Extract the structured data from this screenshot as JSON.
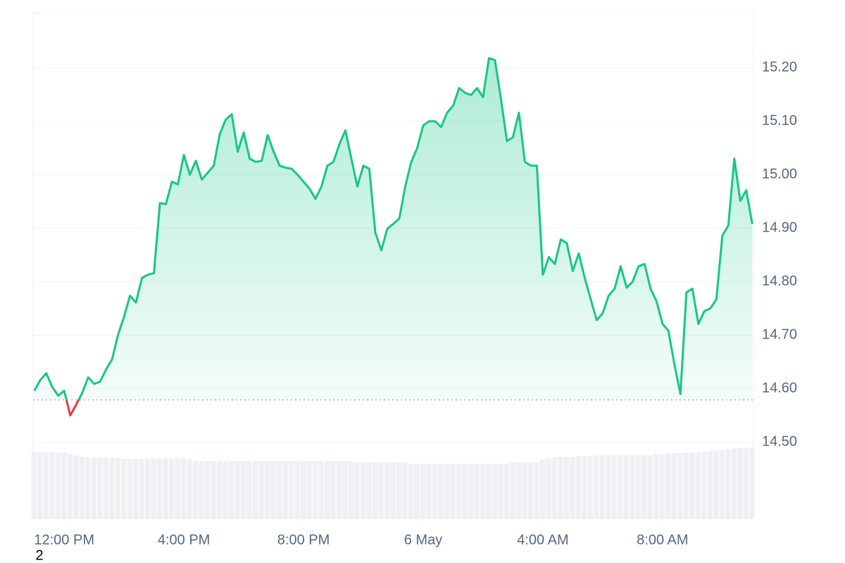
{
  "chart_data": {
    "type": "line",
    "x": [
      11,
      11.2,
      11.4,
      11.6,
      11.8,
      12,
      12.2,
      12.4,
      12.6,
      12.8,
      13,
      13.2,
      13.4,
      13.6,
      13.8,
      14,
      14.2,
      14.4,
      14.6,
      14.8,
      15,
      15.2,
      15.4,
      15.6,
      15.8,
      16,
      16.2,
      16.4,
      16.6,
      16.8,
      17,
      17.2,
      17.4,
      17.6,
      17.8,
      18,
      18.2,
      18.4,
      18.6,
      18.8,
      19,
      19.2,
      19.4,
      19.6,
      19.8,
      20,
      20.2,
      20.4,
      20.6,
      20.8,
      21,
      21.2,
      21.4,
      21.6,
      21.8,
      22,
      22.2,
      22.4,
      22.6,
      22.8,
      23,
      23.2,
      23.4,
      23.6,
      23.8,
      24,
      24.2,
      24.4,
      24.6,
      24.8,
      25,
      25.2,
      25.4,
      25.6,
      25.8,
      26,
      26.2,
      26.4,
      26.6,
      26.8,
      27,
      27.2,
      27.4,
      27.6,
      27.8,
      28,
      28.2,
      28.4,
      28.6,
      28.8,
      29,
      29.2,
      29.4,
      29.6,
      29.8,
      30,
      30.2,
      30.4,
      30.6,
      30.8,
      31,
      31.2,
      31.4,
      31.6,
      31.8,
      32,
      32.2,
      32.4,
      32.6,
      32.8,
      33,
      33.2,
      33.4,
      33.6,
      33.8,
      34,
      34.2,
      34.4,
      34.6,
      34.8,
      35
    ],
    "series": [
      {
        "color": "#16c784",
        "below_color": "#ea3943",
        "values": [
          14.596,
          14.616,
          14.629,
          14.603,
          14.587,
          14.596,
          14.55,
          14.57,
          14.592,
          14.621,
          14.609,
          14.613,
          14.636,
          14.655,
          14.701,
          14.734,
          14.774,
          14.761,
          14.807,
          14.813,
          14.816,
          14.947,
          14.945,
          14.987,
          14.982,
          15.037,
          15.0,
          15.026,
          14.991,
          15.004,
          15.017,
          15.076,
          15.103,
          15.113,
          15.043,
          15.079,
          15.03,
          15.024,
          15.026,
          15.074,
          15.043,
          15.017,
          15.013,
          15.011,
          15.0,
          14.987,
          14.974,
          14.955,
          14.978,
          15.017,
          15.024,
          15.057,
          15.083,
          15.03,
          14.978,
          15.017,
          15.011,
          14.892,
          14.859,
          14.899,
          14.908,
          14.918,
          14.978,
          15.024,
          15.05,
          15.092,
          15.1,
          15.1,
          15.089,
          15.116,
          15.129,
          15.162,
          15.153,
          15.149,
          15.162,
          15.145,
          15.218,
          15.214,
          15.142,
          15.063,
          15.07,
          15.116,
          15.024,
          15.017,
          15.017,
          14.813,
          14.846,
          14.833,
          14.879,
          14.872,
          14.82,
          14.853,
          14.807,
          14.767,
          14.728,
          14.741,
          14.774,
          14.787,
          14.829,
          14.789,
          14.8,
          14.829,
          14.833,
          14.787,
          14.763,
          14.721,
          14.708,
          14.645,
          14.59,
          14.78,
          14.787,
          14.721,
          14.745,
          14.75,
          14.767,
          14.886,
          14.905,
          15.03,
          14.951,
          14.971,
          14.908
        ]
      }
    ],
    "volume": [
      95,
      95,
      95,
      95,
      94,
      94,
      92,
      90,
      88,
      87,
      87,
      87,
      87,
      86,
      86,
      85,
      85,
      85,
      85,
      85,
      85,
      86,
      86,
      86,
      86,
      86,
      85,
      82,
      82,
      82,
      82,
      82,
      82,
      82,
      82,
      82,
      82,
      82,
      82,
      82,
      82,
      82,
      82,
      82,
      82,
      82,
      82,
      82,
      82,
      82,
      82,
      82,
      82,
      82,
      80,
      80,
      80,
      80,
      80,
      80,
      80,
      80,
      80,
      78,
      78,
      78,
      78,
      78,
      78,
      78,
      78,
      78,
      78,
      78,
      78,
      78,
      78,
      78,
      78,
      78,
      80,
      80,
      80,
      80,
      80,
      84,
      86,
      87,
      88,
      88,
      88,
      89,
      89,
      89,
      90,
      90,
      90,
      90,
      90,
      90,
      90,
      90,
      90,
      90,
      92,
      92,
      93,
      93,
      93,
      94,
      94,
      95,
      95,
      96,
      97,
      98,
      99,
      100,
      100,
      100,
      101
    ],
    "volume_color": "#eef0f4",
    "volume_lim": [
      0,
      105
    ],
    "baseline": 14.579,
    "xlim": [
      10.96,
      35.04
    ],
    "xticks": [
      {
        "value": 12,
        "label": "12:00 PM"
      },
      {
        "value": 16,
        "label": "4:00 PM"
      },
      {
        "value": 20,
        "label": "8:00 PM"
      },
      {
        "value": 24,
        "label": "6 May"
      },
      {
        "value": 28,
        "label": "4:00 AM"
      },
      {
        "value": 32,
        "label": "8:00 AM"
      }
    ],
    "ylim": [
      14.357,
      15.303
    ],
    "yticks": [
      {
        "value": 14.5,
        "label": "14.50"
      },
      {
        "value": 14.6,
        "label": "14.60"
      },
      {
        "value": 14.7,
        "label": "14.70"
      },
      {
        "value": 14.8,
        "label": "14.80"
      },
      {
        "value": 14.9,
        "label": "14.90"
      },
      {
        "value": 15.0,
        "label": "15.00"
      },
      {
        "value": 15.1,
        "label": "15.10"
      },
      {
        "value": 15.2,
        "label": "15.20"
      }
    ],
    "grid": true,
    "footnote": "2"
  }
}
